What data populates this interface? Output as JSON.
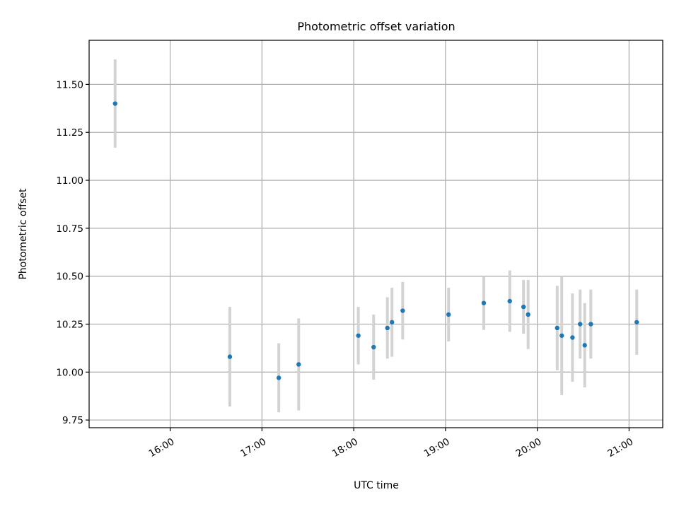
{
  "chart_data": {
    "type": "scatter",
    "title": "Photometric offset variation",
    "xlabel": "UTC time",
    "ylabel": "Photometric offset",
    "x_unit": "UTC time (HH:MM)",
    "xlim": [
      "15:07",
      "21:22"
    ],
    "ylim": [
      9.71,
      11.73
    ],
    "x_ticks": [
      "16:00",
      "17:00",
      "18:00",
      "19:00",
      "20:00",
      "21:00"
    ],
    "y_ticks": [
      "9.75",
      "10.00",
      "10.25",
      "10.50",
      "10.75",
      "11.00",
      "11.25",
      "11.50"
    ],
    "grid": true,
    "x_tick_rotation": 30,
    "colors": {
      "point": "#1f77b4",
      "error_bar": "#d3d3d3"
    },
    "series": [
      {
        "points": [
          {
            "x": "15:24",
            "y": 11.4,
            "err": 0.23
          },
          {
            "x": "16:39",
            "y": 10.08,
            "err": 0.26
          },
          {
            "x": "17:11",
            "y": 9.97,
            "err": 0.18
          },
          {
            "x": "17:24",
            "y": 10.04,
            "err": 0.24
          },
          {
            "x": "18:03",
            "y": 10.19,
            "err": 0.15
          },
          {
            "x": "18:13",
            "y": 10.13,
            "err": 0.17
          },
          {
            "x": "18:22",
            "y": 10.23,
            "err": 0.16
          },
          {
            "x": "18:25",
            "y": 10.26,
            "err": 0.18
          },
          {
            "x": "18:32",
            "y": 10.32,
            "err": 0.15
          },
          {
            "x": "19:02",
            "y": 10.3,
            "err": 0.14
          },
          {
            "x": "19:25",
            "y": 10.36,
            "err": 0.14
          },
          {
            "x": "19:42",
            "y": 10.37,
            "err": 0.16
          },
          {
            "x": "19:51",
            "y": 10.34,
            "err": 0.14
          },
          {
            "x": "19:54",
            "y": 10.3,
            "err": 0.18
          },
          {
            "x": "20:13",
            "y": 10.23,
            "err": 0.22
          },
          {
            "x": "20:16",
            "y": 10.19,
            "err": 0.31
          },
          {
            "x": "20:23",
            "y": 10.18,
            "err": 0.23
          },
          {
            "x": "20:28",
            "y": 10.25,
            "err": 0.18
          },
          {
            "x": "20:31",
            "y": 10.14,
            "err": 0.22
          },
          {
            "x": "20:35",
            "y": 10.25,
            "err": 0.18
          },
          {
            "x": "21:05",
            "y": 10.26,
            "err": 0.17
          }
        ]
      }
    ]
  }
}
